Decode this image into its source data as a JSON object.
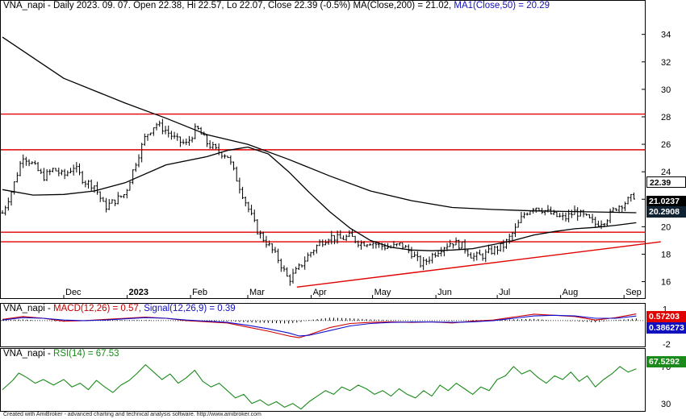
{
  "header": {
    "symbol": "VNA_napi",
    "main_line_prefix": "VNA_napi - Daily 2023. 09. 07. Open 22.38, Hi 22.57, Lo 22.07, Close 22.39 (-0.5%) ",
    "ma200_text": "MA(Close,200) = 21.02, ",
    "ma50_text": "MA1(Close,50) = 20.29"
  },
  "macd_pane": {
    "prefix": "VNA_napi - ",
    "macd_text": "MACD(12,26) = 0.57, ",
    "signal_text": "Signal(12,26,9) = 0.39"
  },
  "rsi_pane": {
    "prefix": "VNA_napi - ",
    "rsi_text": "RSI(14) = 67.53"
  },
  "footer": "Created with AmiBroker - advanced charting and technical analysis software. http://www.amibroker.com",
  "price_tags": {
    "close": "22.39",
    "ma200": "21.0237",
    "ma50": "20.2908",
    "macd": "0.57203",
    "signal": "0.386273",
    "rsi": "67.5292"
  },
  "colors": {
    "price_bars": "#000000",
    "ma_lines": "#000000",
    "horizontal_lines": "#e00000",
    "trendline": "#e00000",
    "macd": "#d00000",
    "signal": "#1010d0",
    "rsi": "#1a8a1a"
  },
  "chart_data": [
    {
      "type": "line",
      "title": "VNA_napi - Daily 2023. 09. 07. Open 22.38, Hi 22.57, Lo 22.07, Close 22.39 (-0.5%)",
      "y_ticks": [
        16,
        18,
        20,
        22,
        24,
        26,
        28,
        30,
        32,
        34
      ],
      "ylim": [
        14.8,
        35.8
      ],
      "x_ticks": [
        "Dec",
        "2023",
        "Feb",
        "Mar",
        "Apr",
        "May",
        "Jun",
        "Jul",
        "Aug",
        "Sep"
      ],
      "x_tick_days": [
        30,
        61,
        92,
        120,
        151,
        181,
        212,
        242,
        273,
        304
      ],
      "xlim": [
        0,
        313
      ],
      "price_close": [
        [
          0,
          21.0
        ],
        [
          5,
          22.8
        ],
        [
          10,
          25.2
        ],
        [
          15,
          24.5
        ],
        [
          20,
          23.6
        ],
        [
          25,
          24.2
        ],
        [
          30,
          23.7
        ],
        [
          35,
          24.4
        ],
        [
          40,
          23.3
        ],
        [
          45,
          23.0
        ],
        [
          50,
          21.4
        ],
        [
          55,
          21.9
        ],
        [
          60,
          22.4
        ],
        [
          65,
          24.6
        ],
        [
          70,
          26.6
        ],
        [
          75,
          27.5
        ],
        [
          80,
          27.0
        ],
        [
          85,
          26.3
        ],
        [
          90,
          26.0
        ],
        [
          95,
          27.2
        ],
        [
          100,
          26.1
        ],
        [
          105,
          25.5
        ],
        [
          110,
          25.2
        ],
        [
          115,
          23.3
        ],
        [
          120,
          21.4
        ],
        [
          125,
          19.6
        ],
        [
          130,
          18.7
        ],
        [
          135,
          17.6
        ],
        [
          140,
          16.1
        ],
        [
          145,
          17.0
        ],
        [
          150,
          18.0
        ],
        [
          155,
          18.8
        ],
        [
          160,
          19.3
        ],
        [
          165,
          19.1
        ],
        [
          170,
          19.3
        ],
        [
          175,
          18.8
        ],
        [
          180,
          18.9
        ],
        [
          185,
          18.6
        ],
        [
          190,
          18.5
        ],
        [
          195,
          18.7
        ],
        [
          200,
          18.1
        ],
        [
          205,
          17.2
        ],
        [
          210,
          17.9
        ],
        [
          215,
          18.5
        ],
        [
          220,
          18.9
        ],
        [
          225,
          18.6
        ],
        [
          230,
          17.8
        ],
        [
          235,
          17.9
        ],
        [
          240,
          18.3
        ],
        [
          245,
          18.6
        ],
        [
          250,
          19.6
        ],
        [
          255,
          20.9
        ],
        [
          260,
          21.5
        ],
        [
          265,
          21.2
        ],
        [
          270,
          20.8
        ],
        [
          275,
          20.6
        ],
        [
          280,
          21.1
        ],
        [
          285,
          20.7
        ],
        [
          290,
          20.2
        ],
        [
          295,
          20.5
        ],
        [
          300,
          21.4
        ],
        [
          305,
          21.8
        ],
        [
          310,
          22.39
        ]
      ],
      "high_low_range": [
        15.5,
        28.6
      ],
      "ma200": [
        [
          0,
          33.8
        ],
        [
          30,
          30.8
        ],
        [
          60,
          29.0
        ],
        [
          80,
          27.9
        ],
        [
          100,
          26.7
        ],
        [
          120,
          26.0
        ],
        [
          140,
          24.9
        ],
        [
          160,
          23.7
        ],
        [
          180,
          22.6
        ],
        [
          200,
          21.9
        ],
        [
          220,
          21.4
        ],
        [
          240,
          21.25
        ],
        [
          260,
          21.15
        ],
        [
          280,
          21.1
        ],
        [
          300,
          21.05
        ],
        [
          310,
          21.02
        ]
      ],
      "ma50": [
        [
          0,
          22.7
        ],
        [
          15,
          22.3
        ],
        [
          30,
          22.35
        ],
        [
          45,
          22.6
        ],
        [
          60,
          23.2
        ],
        [
          80,
          24.5
        ],
        [
          100,
          25.1
        ],
        [
          110,
          25.55
        ],
        [
          120,
          25.8
        ],
        [
          130,
          25.3
        ],
        [
          140,
          24.0
        ],
        [
          150,
          22.5
        ],
        [
          160,
          21.1
        ],
        [
          170,
          19.9
        ],
        [
          180,
          19.0
        ],
        [
          190,
          18.5
        ],
        [
          200,
          18.3
        ],
        [
          210,
          18.25
        ],
        [
          220,
          18.3
        ],
        [
          230,
          18.4
        ],
        [
          240,
          18.7
        ],
        [
          250,
          19.0
        ],
        [
          260,
          19.4
        ],
        [
          270,
          19.65
        ],
        [
          280,
          19.85
        ],
        [
          290,
          19.95
        ],
        [
          300,
          20.1
        ],
        [
          310,
          20.29
        ]
      ],
      "horizontal_levels": [
        28.2,
        25.6,
        19.6,
        18.9
      ],
      "trendline": {
        "from": [
          144,
          15.6
        ],
        "to": [
          322,
          18.9
        ]
      }
    },
    {
      "type": "line",
      "title": "MACD(12,26) = 0.57, Signal(12,26,9) = 0.39",
      "y_ticks": [
        -2,
        1
      ],
      "ylim": [
        -2.2,
        1.5
      ],
      "macd": [
        [
          0,
          0.1
        ],
        [
          10,
          0.35
        ],
        [
          20,
          0.2
        ],
        [
          30,
          -0.05
        ],
        [
          40,
          0.0
        ],
        [
          50,
          0.1
        ],
        [
          60,
          0.2
        ],
        [
          70,
          0.3
        ],
        [
          80,
          0.2
        ],
        [
          90,
          0.0
        ],
        [
          100,
          -0.1
        ],
        [
          110,
          -0.2
        ],
        [
          120,
          -0.55
        ],
        [
          130,
          -0.9
        ],
        [
          140,
          -1.3
        ],
        [
          145,
          -1.45
        ],
        [
          150,
          -1.2
        ],
        [
          160,
          -0.6
        ],
        [
          170,
          -0.25
        ],
        [
          180,
          -0.15
        ],
        [
          190,
          -0.1
        ],
        [
          200,
          -0.15
        ],
        [
          210,
          -0.1
        ],
        [
          220,
          -0.2
        ],
        [
          230,
          -0.05
        ],
        [
          240,
          0.05
        ],
        [
          250,
          0.3
        ],
        [
          260,
          0.55
        ],
        [
          270,
          0.45
        ],
        [
          280,
          0.35
        ],
        [
          290,
          0.05
        ],
        [
          300,
          0.25
        ],
        [
          310,
          0.57
        ]
      ],
      "signal": [
        [
          0,
          0.05
        ],
        [
          10,
          0.25
        ],
        [
          20,
          0.2
        ],
        [
          30,
          0.05
        ],
        [
          40,
          0.0
        ],
        [
          50,
          0.05
        ],
        [
          60,
          0.15
        ],
        [
          70,
          0.25
        ],
        [
          80,
          0.2
        ],
        [
          90,
          0.05
        ],
        [
          100,
          -0.05
        ],
        [
          110,
          -0.15
        ],
        [
          120,
          -0.4
        ],
        [
          130,
          -0.7
        ],
        [
          140,
          -1.05
        ],
        [
          145,
          -1.3
        ],
        [
          150,
          -1.25
        ],
        [
          160,
          -0.85
        ],
        [
          170,
          -0.45
        ],
        [
          180,
          -0.25
        ],
        [
          190,
          -0.15
        ],
        [
          200,
          -0.12
        ],
        [
          210,
          -0.12
        ],
        [
          220,
          -0.15
        ],
        [
          230,
          -0.1
        ],
        [
          240,
          0.0
        ],
        [
          250,
          0.2
        ],
        [
          260,
          0.4
        ],
        [
          270,
          0.45
        ],
        [
          280,
          0.4
        ],
        [
          290,
          0.2
        ],
        [
          300,
          0.2
        ],
        [
          310,
          0.39
        ]
      ]
    },
    {
      "type": "line",
      "title": "RSI(14) = 67.53",
      "y_ticks": [
        30,
        70
      ],
      "ylim": [
        22,
        90
      ],
      "rsi": [
        [
          0,
          45
        ],
        [
          5,
          55
        ],
        [
          8,
          63
        ],
        [
          12,
          58
        ],
        [
          16,
          52
        ],
        [
          20,
          56
        ],
        [
          25,
          50
        ],
        [
          30,
          56
        ],
        [
          34,
          48
        ],
        [
          38,
          52
        ],
        [
          42,
          45
        ],
        [
          46,
          55
        ],
        [
          50,
          48
        ],
        [
          54,
          42
        ],
        [
          58,
          50
        ],
        [
          62,
          55
        ],
        [
          66,
          63
        ],
        [
          70,
          72
        ],
        [
          74,
          64
        ],
        [
          78,
          56
        ],
        [
          82,
          62
        ],
        [
          86,
          52
        ],
        [
          90,
          58
        ],
        [
          94,
          66
        ],
        [
          98,
          54
        ],
        [
          102,
          48
        ],
        [
          106,
          52
        ],
        [
          110,
          44
        ],
        [
          114,
          36
        ],
        [
          118,
          40
        ],
        [
          122,
          30
        ],
        [
          126,
          34
        ],
        [
          130,
          28
        ],
        [
          134,
          32
        ],
        [
          138,
          26
        ],
        [
          142,
          30
        ],
        [
          146,
          24
        ],
        [
          150,
          32
        ],
        [
          154,
          38
        ],
        [
          158,
          44
        ],
        [
          162,
          40
        ],
        [
          166,
          48
        ],
        [
          170,
          44
        ],
        [
          174,
          50
        ],
        [
          178,
          46
        ],
        [
          182,
          40
        ],
        [
          186,
          44
        ],
        [
          190,
          38
        ],
        [
          194,
          46
        ],
        [
          198,
          40
        ],
        [
          202,
          36
        ],
        [
          206,
          44
        ],
        [
          210,
          38
        ],
        [
          214,
          50
        ],
        [
          218,
          44
        ],
        [
          222,
          52
        ],
        [
          226,
          46
        ],
        [
          230,
          40
        ],
        [
          234,
          48
        ],
        [
          238,
          44
        ],
        [
          242,
          56
        ],
        [
          246,
          60
        ],
        [
          250,
          70
        ],
        [
          254,
          62
        ],
        [
          258,
          66
        ],
        [
          262,
          58
        ],
        [
          266,
          52
        ],
        [
          270,
          60
        ],
        [
          274,
          56
        ],
        [
          278,
          64
        ],
        [
          282,
          54
        ],
        [
          286,
          60
        ],
        [
          290,
          48
        ],
        [
          294,
          56
        ],
        [
          298,
          62
        ],
        [
          302,
          70
        ],
        [
          306,
          64
        ],
        [
          310,
          67.53
        ]
      ]
    }
  ]
}
